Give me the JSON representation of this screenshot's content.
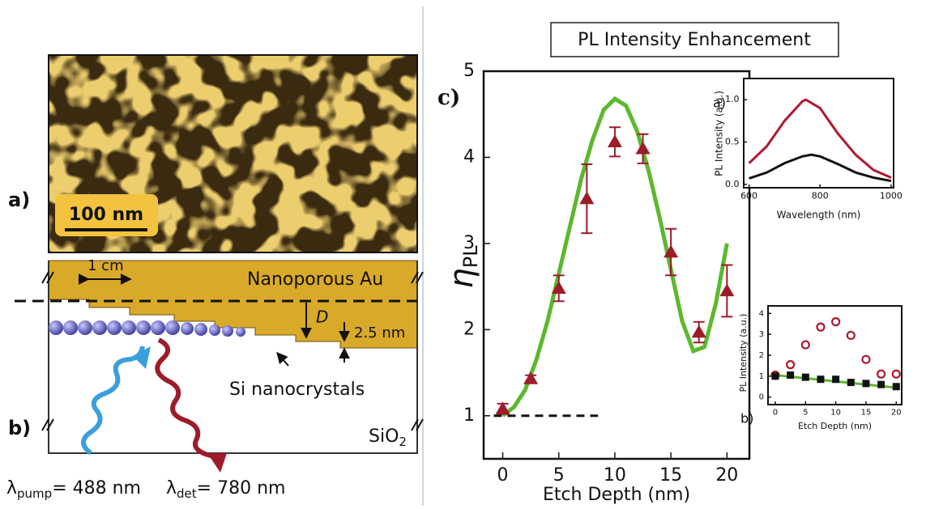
{
  "panels": {
    "a": {
      "label": "a)",
      "scale_bar": "100 nm"
    },
    "b": {
      "label": "b)",
      "step_width": "1 cm",
      "layer": "Nanoporous Au",
      "distance": "D",
      "step_height": "2.5 nm",
      "particles": "Si nanocrystals",
      "substrate": [
        "SiO",
        "2"
      ],
      "pump": [
        "λ",
        "pump",
        "= 488 nm"
      ],
      "detection": [
        "λ",
        "det",
        "= 780 nm"
      ]
    }
  },
  "chart_data": [
    {
      "type": "scatter",
      "title": "PL Intensity Enhancement",
      "panel_label": "c)",
      "xlabel": "Etch Depth (nm)",
      "ylabel": "η",
      "ylabel_subscript": "PL",
      "xlim": [
        -1.7,
        22
      ],
      "ylim": [
        0.5,
        5
      ],
      "xticks": [
        0,
        5,
        10,
        15,
        20
      ],
      "yticks": [
        1,
        2,
        3,
        4,
        5
      ],
      "baseline": {
        "y": 1,
        "x": [
          -0.8,
          8.5
        ]
      },
      "series": [
        {
          "type": "line",
          "color": "#5cb82e",
          "x": [
            0,
            1,
            2,
            3,
            4,
            5,
            6,
            7,
            8,
            9,
            10,
            11,
            12,
            13,
            14,
            15,
            16,
            17,
            18,
            19,
            20
          ],
          "values": [
            1.0,
            1.1,
            1.3,
            1.65,
            2.1,
            2.65,
            3.2,
            3.75,
            4.2,
            4.55,
            4.68,
            4.6,
            4.3,
            3.85,
            3.3,
            2.7,
            2.1,
            1.75,
            1.8,
            2.3,
            3.0
          ]
        },
        {
          "type": "scatter",
          "marker": "triangle",
          "color": "#9e1b2a",
          "x": [
            0,
            2.5,
            5,
            7.5,
            10,
            12.5,
            15,
            17.5,
            20
          ],
          "values": [
            1.08,
            1.43,
            2.48,
            3.52,
            4.18,
            4.1,
            2.9,
            1.97,
            2.45
          ],
          "errors": [
            0.06,
            0.04,
            0.15,
            0.4,
            0.17,
            0.17,
            0.27,
            0.12,
            0.3
          ]
        }
      ]
    },
    {
      "type": "line",
      "panel_label": "a)",
      "xlabel": "Wavelength (nm)",
      "ylabel": "PL Intensity (a.u.)",
      "xlim": [
        585,
        1007
      ],
      "ylim": [
        -0.04,
        1.25
      ],
      "xticks": [
        600,
        800,
        1000
      ],
      "yticks": [
        {
          "value": 0,
          "label": "0.0"
        },
        {
          "value": 0.5,
          "label": "0.5"
        },
        {
          "value": 1,
          "label": "1.0"
        }
      ],
      "series": [
        {
          "type": "line",
          "color": "#b0182e",
          "x": [
            600,
            650,
            700,
            750,
            760,
            800,
            850,
            900,
            950,
            1000
          ],
          "values": [
            0.25,
            0.45,
            0.75,
            0.98,
            1.0,
            0.9,
            0.6,
            0.35,
            0.17,
            0.08
          ]
        },
        {
          "type": "line",
          "color": "#111111",
          "x": [
            600,
            650,
            700,
            750,
            775,
            800,
            850,
            900,
            950,
            1000
          ],
          "values": [
            0.07,
            0.14,
            0.25,
            0.33,
            0.35,
            0.33,
            0.24,
            0.14,
            0.08,
            0.04
          ]
        }
      ]
    },
    {
      "type": "scatter",
      "panel_label": "b)",
      "xlabel": "Etch Depth (nm)",
      "ylabel": "PL Intensity (a.u.)",
      "xlim": [
        -1.2,
        20.9
      ],
      "ylim": [
        -0.36,
        4.36
      ],
      "xticks": [
        0,
        5,
        10,
        15,
        20
      ],
      "yticks": [
        0,
        1,
        2,
        3,
        4
      ],
      "series": [
        {
          "type": "line",
          "color": "#5cb82e",
          "x": [
            0,
            20
          ],
          "values": [
            1.05,
            0.45
          ]
        },
        {
          "type": "scatter",
          "marker": "circle",
          "color": "#b0182e",
          "x": [
            0,
            2.5,
            5,
            7.5,
            10,
            12.5,
            15,
            17.5,
            20
          ],
          "values": [
            1.05,
            1.55,
            2.5,
            3.35,
            3.6,
            2.95,
            1.8,
            1.1,
            1.1
          ]
        },
        {
          "type": "scatter",
          "marker": "square",
          "color": "#111111",
          "x": [
            0,
            2.5,
            5,
            7.5,
            10,
            12.5,
            15,
            17.5,
            20
          ],
          "values": [
            1.0,
            1.05,
            0.95,
            0.85,
            0.85,
            0.7,
            0.65,
            0.6,
            0.5
          ]
        }
      ]
    }
  ]
}
